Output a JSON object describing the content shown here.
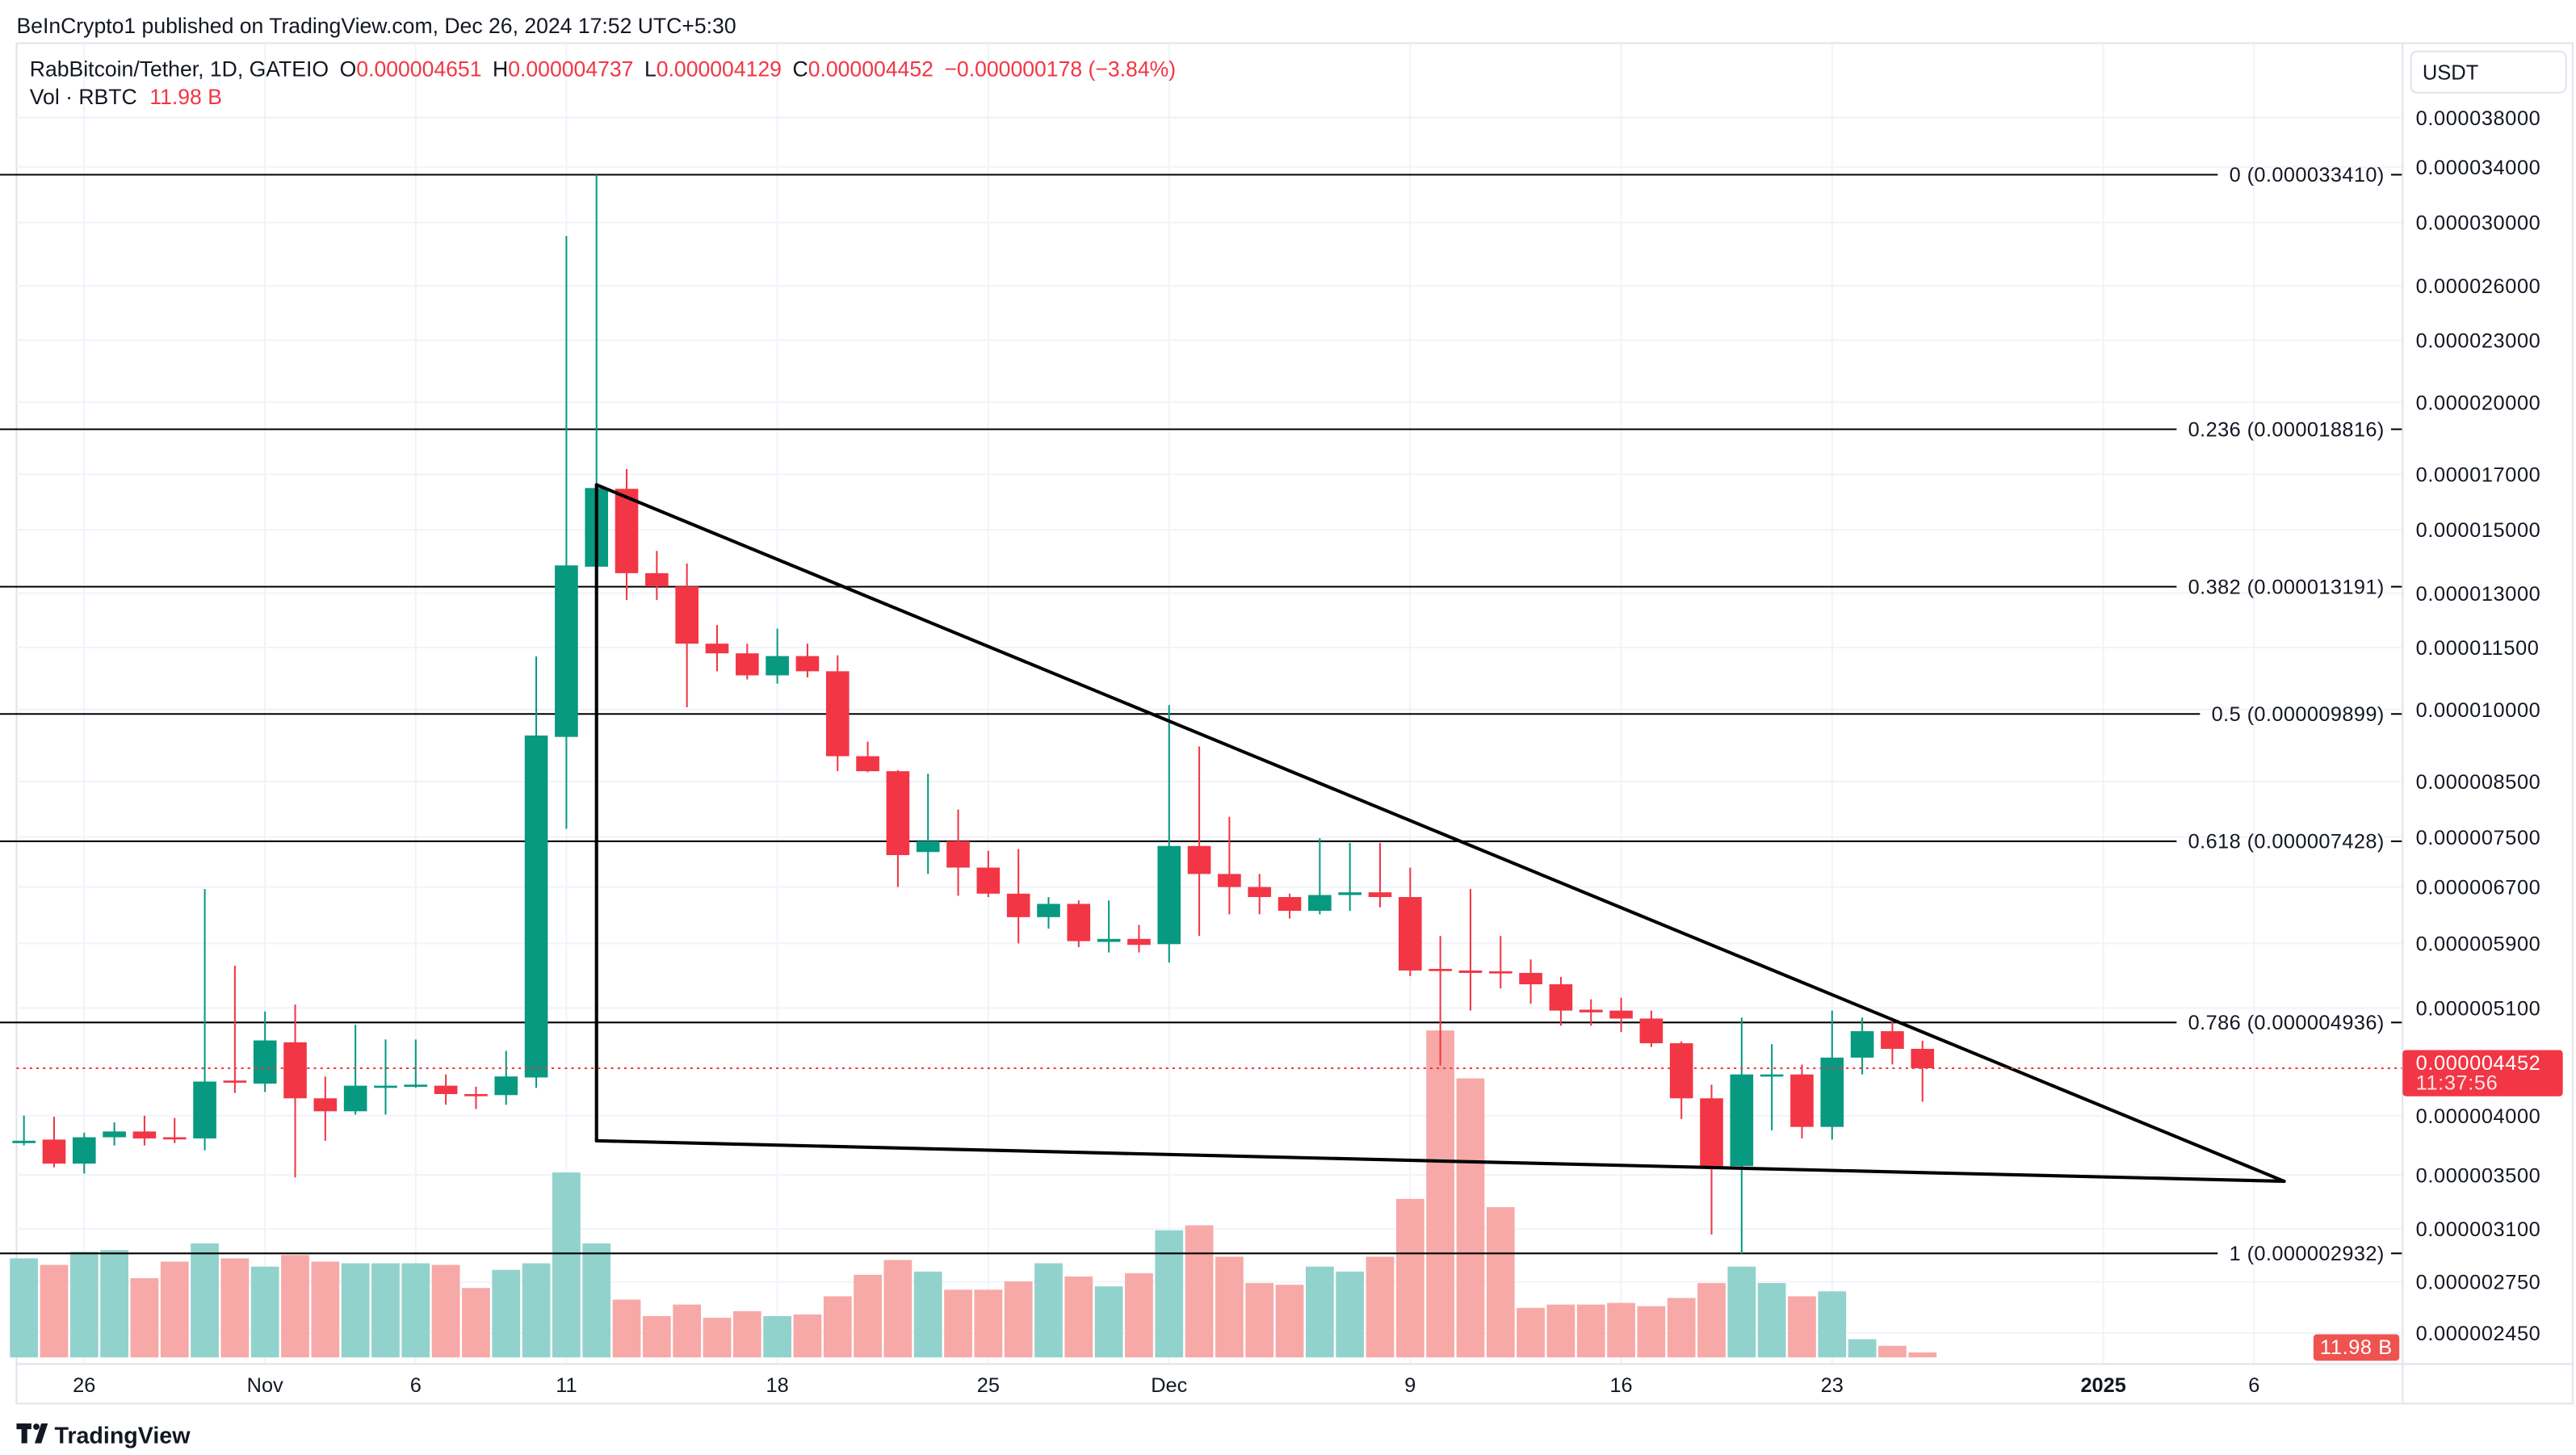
{
  "publish_note": "BeInCrypto1 published on TradingView.com, Dec 26, 2024 17:52 UTC+5:30",
  "legend": {
    "symbol": "RabBitcoin/Tether, 1D, GATEIO",
    "o_label": "O",
    "o": "0.000004651",
    "h_label": "H",
    "h": "0.000004737",
    "l_label": "L",
    "l": "0.000004129",
    "c_label": "C",
    "c": "0.000004452",
    "change": "−0.000000178 (−3.84%)",
    "vol_label": "Vol · RBTC",
    "vol": "11.98 B"
  },
  "currency_button": "USDT",
  "last_price": {
    "value": "0.000004452",
    "countdown": "11:37:56"
  },
  "volume_badge": "11.98 B",
  "logo": "TradingView",
  "colors": {
    "up": "#089981",
    "down": "#f23645",
    "vol_up": "#92d2cc",
    "vol_down": "#f7a9a7",
    "grid": "#f0f3fa",
    "fib_line": "#000000",
    "trendline": "#000000"
  },
  "chart_data": {
    "type": "candlestick",
    "title": "RabBitcoin/Tether, 1D, GATEIO",
    "price_scale": "log",
    "ylabel": "USDT",
    "y_ticks": [
      {
        "value": 3.8e-05,
        "label": "0.000038000"
      },
      {
        "value": 3.4e-05,
        "label": "0.000034000"
      },
      {
        "value": 3e-05,
        "label": "0.000030000"
      },
      {
        "value": 2.6e-05,
        "label": "0.000026000"
      },
      {
        "value": 2.3e-05,
        "label": "0.000023000"
      },
      {
        "value": 2e-05,
        "label": "0.000020000"
      },
      {
        "value": 1.7e-05,
        "label": "0.000017000"
      },
      {
        "value": 1.5e-05,
        "label": "0.000015000"
      },
      {
        "value": 1.3e-05,
        "label": "0.000013000"
      },
      {
        "value": 1.15e-05,
        "label": "0.000011500"
      },
      {
        "value": 1e-05,
        "label": "0.000010000"
      },
      {
        "value": 8.5e-06,
        "label": "0.000008500"
      },
      {
        "value": 7.5e-06,
        "label": "0.000007500"
      },
      {
        "value": 6.7e-06,
        "label": "0.000006700"
      },
      {
        "value": 5.9e-06,
        "label": "0.000005900"
      },
      {
        "value": 5.1e-06,
        "label": "0.000005100"
      },
      {
        "value": 4e-06,
        "label": "0.000004000"
      },
      {
        "value": 3.5e-06,
        "label": "0.000003500"
      },
      {
        "value": 3.1e-06,
        "label": "0.000003100"
      },
      {
        "value": 2.75e-06,
        "label": "0.000002750"
      },
      {
        "value": 2.45e-06,
        "label": "0.000002450"
      }
    ],
    "x_ticks": [
      {
        "label": "26",
        "date": "2024-10-26"
      },
      {
        "label": "Nov",
        "date": "2024-11-01"
      },
      {
        "label": "6",
        "date": "2024-11-06"
      },
      {
        "label": "11",
        "date": "2024-11-11"
      },
      {
        "label": "18",
        "date": "2024-11-18"
      },
      {
        "label": "25",
        "date": "2024-11-25"
      },
      {
        "label": "Dec",
        "date": "2024-12-01"
      },
      {
        "label": "9",
        "date": "2024-12-09"
      },
      {
        "label": "16",
        "date": "2024-12-16"
      },
      {
        "label": "23",
        "date": "2024-12-23"
      },
      {
        "label": "2025",
        "date": "2025-01-01",
        "bold": true
      },
      {
        "label": "6",
        "date": "2025-01-06"
      }
    ],
    "candle_fields": [
      "date",
      "open",
      "high",
      "low",
      "close",
      "volume_billions"
    ],
    "candles": [
      [
        "2024-10-24",
        3.76e-06,
        4e-06,
        3.74e-06,
        3.78e-06,
        240
      ],
      [
        "2024-10-25",
        3.79e-06,
        3.99e-06,
        3.56e-06,
        3.59e-06,
        224
      ],
      [
        "2024-10-26",
        3.59e-06,
        3.85e-06,
        3.51e-06,
        3.81e-06,
        256
      ],
      [
        "2024-10-27",
        3.81e-06,
        3.94e-06,
        3.74e-06,
        3.86e-06,
        260
      ],
      [
        "2024-10-28",
        3.86e-06,
        4e-06,
        3.74e-06,
        3.8e-06,
        192
      ],
      [
        "2024-10-29",
        3.81e-06,
        3.98e-06,
        3.76e-06,
        3.8e-06,
        232
      ],
      [
        "2024-10-30",
        3.8e-06,
        6.67e-06,
        3.7e-06,
        4.32e-06,
        276
      ],
      [
        "2024-10-31",
        4.33e-06,
        5.61e-06,
        4.21e-06,
        4.31e-06,
        240
      ],
      [
        "2024-11-01",
        4.3e-06,
        5.06e-06,
        4.22e-06,
        4.74e-06,
        220
      ],
      [
        "2024-11-02",
        4.72e-06,
        5.14e-06,
        3.48e-06,
        4.16e-06,
        248
      ],
      [
        "2024-11-03",
        4.16e-06,
        4.37e-06,
        3.78e-06,
        4.04e-06,
        232
      ],
      [
        "2024-11-04",
        4.04e-06,
        4.91e-06,
        4.01e-06,
        4.28e-06,
        228
      ],
      [
        "2024-11-05",
        4.27e-06,
        4.75e-06,
        4.01e-06,
        4.28e-06,
        228
      ],
      [
        "2024-11-06",
        4.28e-06,
        4.75e-06,
        4.26e-06,
        4.29e-06,
        228
      ],
      [
        "2024-11-07",
        4.28e-06,
        4.39e-06,
        4.1e-06,
        4.2e-06,
        224
      ],
      [
        "2024-11-08",
        4.2e-06,
        4.27e-06,
        4.06e-06,
        4.18e-06,
        168
      ],
      [
        "2024-11-09",
        4.19e-06,
        4.63e-06,
        4.1e-06,
        4.37e-06,
        212
      ],
      [
        "2024-11-10",
        4.36e-06,
        1.127e-05,
        4.26e-06,
        9.43e-06,
        228
      ],
      [
        "2024-11-11",
        9.4e-06,
        2.91e-05,
        7.64e-06,
        1.384e-05,
        448
      ],
      [
        "2024-11-12",
        1.38e-05,
        3.341e-05,
        1.34e-05,
        1.648e-05,
        276
      ],
      [
        "2024-11-13",
        1.645e-05,
        1.72e-05,
        1.28e-05,
        1.36e-05,
        140
      ],
      [
        "2024-11-14",
        1.36e-05,
        1.43e-05,
        1.28e-05,
        1.32e-05,
        100
      ],
      [
        "2024-11-15",
        1.32e-05,
        1.39e-05,
        1.005e-05,
        1.16e-05,
        128
      ],
      [
        "2024-11-16",
        1.16e-05,
        1.21e-05,
        1.09e-05,
        1.135e-05,
        96
      ],
      [
        "2024-11-17",
        1.135e-05,
        1.16e-05,
        1.07e-05,
        1.08e-05,
        112
      ],
      [
        "2024-11-18",
        1.08e-05,
        1.2e-05,
        1.06e-05,
        1.128e-05,
        100
      ],
      [
        "2024-11-19",
        1.128e-05,
        1.16e-05,
        1.075e-05,
        1.09e-05,
        104
      ],
      [
        "2024-11-20",
        1.09e-05,
        1.13e-05,
        8.7e-06,
        9e-06,
        148
      ],
      [
        "2024-11-21",
        9e-06,
        9.3e-06,
        8.68e-06,
        8.7e-06,
        200
      ],
      [
        "2024-11-22",
        8.7e-06,
        8.72e-06,
        6.7e-06,
        7.2e-06,
        236
      ],
      [
        "2024-11-23",
        7.25e-06,
        8.65e-06,
        6.9e-06,
        7.43e-06,
        208
      ],
      [
        "2024-11-24",
        7.43e-06,
        7.98e-06,
        6.57e-06,
        7e-06,
        164
      ],
      [
        "2024-11-25",
        7e-06,
        7.27e-06,
        6.55e-06,
        6.6e-06,
        164
      ],
      [
        "2024-11-26",
        6.6e-06,
        7.3e-06,
        5.9e-06,
        6.26e-06,
        184
      ],
      [
        "2024-11-27",
        6.26e-06,
        6.55e-06,
        6.1e-06,
        6.45e-06,
        228
      ],
      [
        "2024-11-28",
        6.45e-06,
        6.5e-06,
        5.85e-06,
        5.93e-06,
        196
      ],
      [
        "2024-11-29",
        5.92e-06,
        6.5e-06,
        5.78e-06,
        5.96e-06,
        172
      ],
      [
        "2024-11-30",
        5.96e-06,
        6.15e-06,
        5.78e-06,
        5.88e-06,
        204
      ],
      [
        "2024-12-01",
        5.89e-06,
        1.01e-05,
        5.65e-06,
        7.35e-06,
        308
      ],
      [
        "2024-12-02",
        7.35e-06,
        9.2e-06,
        6e-06,
        6.9e-06,
        320
      ],
      [
        "2024-12-03",
        6.9e-06,
        7.85e-06,
        6.3e-06,
        6.7e-06,
        244
      ],
      [
        "2024-12-04",
        6.7e-06,
        6.9e-06,
        6.3e-06,
        6.55e-06,
        180
      ],
      [
        "2024-12-05",
        6.55e-06,
        6.6e-06,
        6.24e-06,
        6.35e-06,
        176
      ],
      [
        "2024-12-06",
        6.35e-06,
        7.48e-06,
        6.3e-06,
        6.58e-06,
        220
      ],
      [
        "2024-12-07",
        6.58e-06,
        7.4e-06,
        6.35e-06,
        6.62e-06,
        208
      ],
      [
        "2024-12-08",
        6.62e-06,
        7.4e-06,
        6.4e-06,
        6.55e-06,
        244
      ],
      [
        "2024-12-09",
        6.55e-06,
        7e-06,
        5.48e-06,
        5.55e-06,
        384
      ],
      [
        "2024-12-10",
        5.57e-06,
        6e-06,
        4.48e-06,
        5.55e-06,
        792
      ],
      [
        "2024-12-11",
        5.55e-06,
        6.67e-06,
        5.07e-06,
        5.52e-06,
        676
      ],
      [
        "2024-12-12",
        5.54e-06,
        6e-06,
        5.33e-06,
        5.52e-06,
        364
      ],
      [
        "2024-12-13",
        5.52e-06,
        5.69e-06,
        5.15e-06,
        5.38e-06,
        120
      ],
      [
        "2024-12-14",
        5.38e-06,
        5.47e-06,
        4.9e-06,
        5.07e-06,
        128
      ],
      [
        "2024-12-15",
        5.08e-06,
        5.2e-06,
        4.9e-06,
        5.05e-06,
        128
      ],
      [
        "2024-12-16",
        5.07e-06,
        5.22e-06,
        4.83e-06,
        4.98e-06,
        132
      ],
      [
        "2024-12-17",
        4.98e-06,
        5.07e-06,
        4.67e-06,
        4.71e-06,
        124
      ],
      [
        "2024-12-18",
        4.71e-06,
        4.73e-06,
        3.97e-06,
        4.16e-06,
        144
      ],
      [
        "2024-12-19",
        4.16e-06,
        4.29e-06,
        3.06e-06,
        3.57e-06,
        180
      ],
      [
        "2024-12-20",
        3.57e-06,
        4.99e-06,
        2.93e-06,
        4.39e-06,
        220
      ],
      [
        "2024-12-21",
        4.38e-06,
        4.7e-06,
        3.87e-06,
        4.39e-06,
        180
      ],
      [
        "2024-12-22",
        4.39e-06,
        4.49e-06,
        3.8e-06,
        3.9e-06,
        148
      ],
      [
        "2024-12-23",
        3.9e-06,
        5.07e-06,
        3.79e-06,
        4.56e-06,
        160
      ],
      [
        "2024-12-24",
        4.56e-06,
        4.99e-06,
        4.39e-06,
        4.84e-06,
        44
      ],
      [
        "2024-12-25",
        4.84e-06,
        4.95e-06,
        4.49e-06,
        4.651e-06,
        28
      ],
      [
        "2024-12-26",
        4.651e-06,
        4.737e-06,
        4.129e-06,
        4.452e-06,
        11.98
      ]
    ],
    "last_close": 4.452e-06,
    "fib_retracement": {
      "start_date": "2024-10-23",
      "levels": [
        {
          "ratio": "0",
          "price": 3.341e-05,
          "label": "0 (0.000033410)"
        },
        {
          "ratio": "0.236",
          "price": 1.8816e-05,
          "label": "0.236 (0.000018816)"
        },
        {
          "ratio": "0.382",
          "price": 1.3191e-05,
          "label": "0.382 (0.000013191)"
        },
        {
          "ratio": "0.5",
          "price": 9.899e-06,
          "label": "0.5 (0.000009899)"
        },
        {
          "ratio": "0.618",
          "price": 7.428e-06,
          "label": "0.618 (0.000007428)"
        },
        {
          "ratio": "0.786",
          "price": 4.936e-06,
          "label": "0.786 (0.000004936)"
        },
        {
          "ratio": "1",
          "price": 2.932e-06,
          "label": "1 (0.000002932)"
        }
      ]
    },
    "trendlines": [
      {
        "name": "upper-trendline",
        "from": {
          "date": "2024-11-12",
          "price": 1.66e-05
        },
        "to": {
          "date": "2025-01-07",
          "price": 3.45e-06
        }
      },
      {
        "name": "lower-trendline",
        "from": {
          "date": "2024-11-12",
          "price": 3.78e-06
        },
        "to": {
          "date": "2025-01-07",
          "price": 3.45e-06
        }
      },
      {
        "name": "vertical-trendline",
        "from": {
          "date": "2024-11-12",
          "price": 1.66e-05
        },
        "to": {
          "date": "2024-11-12",
          "price": 3.78e-06
        }
      }
    ]
  }
}
